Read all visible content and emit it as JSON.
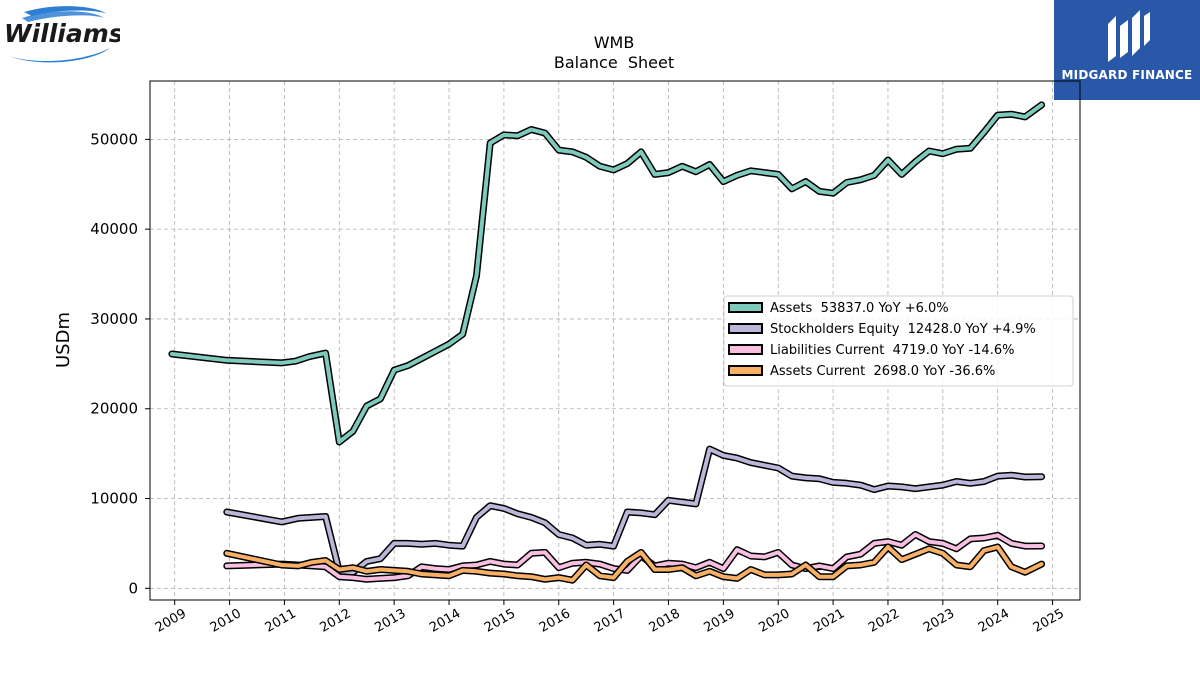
{
  "logos": {
    "left_text": "Williams",
    "right_text": "MIDGARD FINANCE"
  },
  "chart_data": {
    "type": "line",
    "title": "WMB",
    "subtitle": "Balance  Sheet",
    "xlabel": "",
    "ylabel": "USDm",
    "xlim": [
      2008.55,
      2025.5
    ],
    "ylim": [
      -1300,
      56500
    ],
    "grid": true,
    "legend_position": "center-right",
    "x_ticks": [
      2009,
      2010,
      2011,
      2012,
      2013,
      2014,
      2015,
      2016,
      2017,
      2018,
      2019,
      2020,
      2021,
      2022,
      2023,
      2024,
      2025
    ],
    "x_tick_labels": [
      "2009",
      "2010",
      "2011",
      "2012",
      "2013",
      "2014",
      "2015",
      "2016",
      "2017",
      "2018",
      "2019",
      "2020",
      "2021",
      "2022",
      "2023",
      "2024",
      "2025"
    ],
    "y_ticks": [
      0,
      10000,
      20000,
      30000,
      40000,
      50000
    ],
    "y_tick_labels": [
      "0",
      "10000",
      "20000",
      "30000",
      "40000",
      "50000"
    ],
    "series": [
      {
        "name": "Assets",
        "legend_label": "Assets  53837.0 YoY +6.0%",
        "color": "#7ecbbd",
        "points": [
          [
            2008.95,
            26100
          ],
          [
            2009.95,
            25400
          ],
          [
            2010.95,
            25100
          ],
          [
            2011.2,
            25300
          ],
          [
            2011.45,
            25800
          ],
          [
            2011.75,
            26200
          ],
          [
            2012.0,
            16300
          ],
          [
            2012.25,
            17500
          ],
          [
            2012.5,
            20300
          ],
          [
            2012.75,
            21100
          ],
          [
            2013.0,
            24300
          ],
          [
            2013.25,
            24800
          ],
          [
            2013.5,
            25600
          ],
          [
            2013.75,
            26400
          ],
          [
            2014.0,
            27200
          ],
          [
            2014.25,
            28300
          ],
          [
            2014.5,
            34800
          ],
          [
            2014.75,
            49600
          ],
          [
            2015.0,
            50500
          ],
          [
            2015.25,
            50400
          ],
          [
            2015.5,
            51100
          ],
          [
            2015.75,
            50700
          ],
          [
            2016.0,
            48800
          ],
          [
            2016.25,
            48600
          ],
          [
            2016.5,
            48000
          ],
          [
            2016.75,
            47000
          ],
          [
            2017.0,
            46600
          ],
          [
            2017.25,
            47300
          ],
          [
            2017.5,
            48600
          ],
          [
            2017.75,
            46100
          ],
          [
            2018.0,
            46300
          ],
          [
            2018.25,
            47000
          ],
          [
            2018.5,
            46400
          ],
          [
            2018.75,
            47200
          ],
          [
            2019.0,
            45300
          ],
          [
            2019.25,
            46000
          ],
          [
            2019.5,
            46500
          ],
          [
            2019.75,
            46300
          ],
          [
            2020.0,
            46100
          ],
          [
            2020.25,
            44500
          ],
          [
            2020.5,
            45300
          ],
          [
            2020.75,
            44200
          ],
          [
            2021.0,
            44000
          ],
          [
            2021.25,
            45200
          ],
          [
            2021.5,
            45500
          ],
          [
            2021.75,
            46000
          ],
          [
            2022.0,
            47700
          ],
          [
            2022.25,
            46100
          ],
          [
            2022.5,
            47500
          ],
          [
            2022.75,
            48700
          ],
          [
            2023.0,
            48400
          ],
          [
            2023.25,
            48900
          ],
          [
            2023.5,
            49000
          ],
          [
            2023.75,
            50800
          ],
          [
            2024.0,
            52700
          ],
          [
            2024.25,
            52800
          ],
          [
            2024.5,
            52500
          ],
          [
            2024.8,
            53837
          ]
        ]
      },
      {
        "name": "Stockholders Equity",
        "legend_label": "Stockholders Equity  12428.0 YoY +4.9%",
        "color": "#bab7d9",
        "points": [
          [
            2009.95,
            8500
          ],
          [
            2010.95,
            7400
          ],
          [
            2011.25,
            7800
          ],
          [
            2011.75,
            8000
          ],
          [
            2012.0,
            1900
          ],
          [
            2012.25,
            1800
          ],
          [
            2012.5,
            3000
          ],
          [
            2012.75,
            3300
          ],
          [
            2013.0,
            5000
          ],
          [
            2013.25,
            5000
          ],
          [
            2013.5,
            4900
          ],
          [
            2013.75,
            5000
          ],
          [
            2014.0,
            4800
          ],
          [
            2014.25,
            4700
          ],
          [
            2014.5,
            7900
          ],
          [
            2014.75,
            9200
          ],
          [
            2015.0,
            8900
          ],
          [
            2015.25,
            8300
          ],
          [
            2015.5,
            7900
          ],
          [
            2015.75,
            7300
          ],
          [
            2016.0,
            6000
          ],
          [
            2016.25,
            5600
          ],
          [
            2016.5,
            4800
          ],
          [
            2016.75,
            4900
          ],
          [
            2017.0,
            4700
          ],
          [
            2017.25,
            8500
          ],
          [
            2017.5,
            8400
          ],
          [
            2017.75,
            8200
          ],
          [
            2018.0,
            9800
          ],
          [
            2018.25,
            9600
          ],
          [
            2018.5,
            9400
          ],
          [
            2018.75,
            15500
          ],
          [
            2019.0,
            14800
          ],
          [
            2019.25,
            14500
          ],
          [
            2019.5,
            14000
          ],
          [
            2019.75,
            13700
          ],
          [
            2020.0,
            13400
          ],
          [
            2020.25,
            12500
          ],
          [
            2020.5,
            12300
          ],
          [
            2020.75,
            12200
          ],
          [
            2021.0,
            11800
          ],
          [
            2021.25,
            11700
          ],
          [
            2021.5,
            11500
          ],
          [
            2021.75,
            11000
          ],
          [
            2022.0,
            11400
          ],
          [
            2022.25,
            11300
          ],
          [
            2022.5,
            11100
          ],
          [
            2022.75,
            11300
          ],
          [
            2023.0,
            11500
          ],
          [
            2023.25,
            11900
          ],
          [
            2023.5,
            11700
          ],
          [
            2023.75,
            11900
          ],
          [
            2024.0,
            12500
          ],
          [
            2024.25,
            12600
          ],
          [
            2024.5,
            12400
          ],
          [
            2024.8,
            12428
          ]
        ]
      },
      {
        "name": "Liabilities Current",
        "legend_label": "Liabilities Current  4719.0 YoY -14.6%",
        "color": "#f7bfe0",
        "points": [
          [
            2009.95,
            2500
          ],
          [
            2010.95,
            2700
          ],
          [
            2011.25,
            2600
          ],
          [
            2011.75,
            2400
          ],
          [
            2012.0,
            1300
          ],
          [
            2012.25,
            1200
          ],
          [
            2012.5,
            1000
          ],
          [
            2012.75,
            1100
          ],
          [
            2013.0,
            1200
          ],
          [
            2013.25,
            1400
          ],
          [
            2013.5,
            2400
          ],
          [
            2013.75,
            2200
          ],
          [
            2014.0,
            2100
          ],
          [
            2014.25,
            2500
          ],
          [
            2014.5,
            2600
          ],
          [
            2014.75,
            3000
          ],
          [
            2015.0,
            2700
          ],
          [
            2015.25,
            2600
          ],
          [
            2015.5,
            3900
          ],
          [
            2015.75,
            4000
          ],
          [
            2016.0,
            2300
          ],
          [
            2016.25,
            2800
          ],
          [
            2016.5,
            2900
          ],
          [
            2016.75,
            2700
          ],
          [
            2017.0,
            2200
          ],
          [
            2017.25,
            2000
          ],
          [
            2017.5,
            3600
          ],
          [
            2017.75,
            2500
          ],
          [
            2018.0,
            2800
          ],
          [
            2018.25,
            2700
          ],
          [
            2018.5,
            2300
          ],
          [
            2018.75,
            2900
          ],
          [
            2019.0,
            2200
          ],
          [
            2019.25,
            4300
          ],
          [
            2019.5,
            3600
          ],
          [
            2019.75,
            3500
          ],
          [
            2020.0,
            4000
          ],
          [
            2020.25,
            2600
          ],
          [
            2020.5,
            2200
          ],
          [
            2020.75,
            2500
          ],
          [
            2021.0,
            2200
          ],
          [
            2021.25,
            3500
          ],
          [
            2021.5,
            3800
          ],
          [
            2021.75,
            5000
          ],
          [
            2022.0,
            5200
          ],
          [
            2022.25,
            4800
          ],
          [
            2022.5,
            6000
          ],
          [
            2022.75,
            5200
          ],
          [
            2023.0,
            5000
          ],
          [
            2023.25,
            4400
          ],
          [
            2023.5,
            5500
          ],
          [
            2023.75,
            5600
          ],
          [
            2024.0,
            5900
          ],
          [
            2024.25,
            5000
          ],
          [
            2024.5,
            4700
          ],
          [
            2024.8,
            4719
          ]
        ]
      },
      {
        "name": "Assets Current",
        "legend_label": "Assets Current  2698.0 YoY -36.6%",
        "color": "#f6b166",
        "points": [
          [
            2009.95,
            3900
          ],
          [
            2010.95,
            2600
          ],
          [
            2011.25,
            2500
          ],
          [
            2011.5,
            2900
          ],
          [
            2011.75,
            3100
          ],
          [
            2012.0,
            2100
          ],
          [
            2012.25,
            2300
          ],
          [
            2012.5,
            1900
          ],
          [
            2012.75,
            2100
          ],
          [
            2013.0,
            2000
          ],
          [
            2013.25,
            1900
          ],
          [
            2013.5,
            1600
          ],
          [
            2013.75,
            1500
          ],
          [
            2014.0,
            1400
          ],
          [
            2014.25,
            2000
          ],
          [
            2014.5,
            1900
          ],
          [
            2014.75,
            1700
          ],
          [
            2015.0,
            1600
          ],
          [
            2015.25,
            1400
          ],
          [
            2015.5,
            1300
          ],
          [
            2015.75,
            1000
          ],
          [
            2016.0,
            1200
          ],
          [
            2016.25,
            900
          ],
          [
            2016.5,
            2600
          ],
          [
            2016.75,
            1400
          ],
          [
            2017.0,
            1200
          ],
          [
            2017.25,
            3000
          ],
          [
            2017.5,
            4000
          ],
          [
            2017.75,
            2100
          ],
          [
            2018.0,
            2100
          ],
          [
            2018.25,
            2300
          ],
          [
            2018.5,
            1400
          ],
          [
            2018.75,
            1900
          ],
          [
            2019.0,
            1300
          ],
          [
            2019.25,
            1100
          ],
          [
            2019.5,
            2100
          ],
          [
            2019.75,
            1500
          ],
          [
            2020.0,
            1500
          ],
          [
            2020.25,
            1600
          ],
          [
            2020.5,
            2600
          ],
          [
            2020.75,
            1300
          ],
          [
            2021.0,
            1300
          ],
          [
            2021.25,
            2500
          ],
          [
            2021.5,
            2600
          ],
          [
            2021.75,
            2900
          ],
          [
            2022.0,
            4600
          ],
          [
            2022.25,
            3200
          ],
          [
            2022.5,
            3800
          ],
          [
            2022.75,
            4400
          ],
          [
            2023.0,
            3900
          ],
          [
            2023.25,
            2600
          ],
          [
            2023.5,
            2400
          ],
          [
            2023.75,
            4200
          ],
          [
            2024.0,
            4600
          ],
          [
            2024.25,
            2400
          ],
          [
            2024.5,
            1800
          ],
          [
            2024.8,
            2698
          ]
        ]
      }
    ]
  }
}
